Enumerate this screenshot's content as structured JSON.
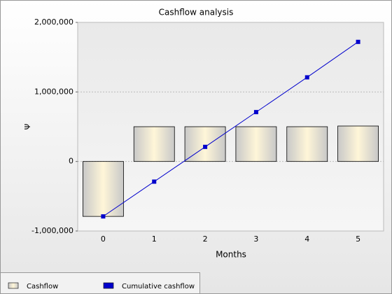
{
  "chart_data": {
    "type": "bar-line",
    "title": "Cashflow analysis",
    "y_label": "Ψ",
    "x_label": "Months",
    "categories": [
      "0",
      "1",
      "2",
      "3",
      "4",
      "5"
    ],
    "series": [
      {
        "name": "Cashflow",
        "type": "bar",
        "color": "#fff6d8",
        "values": [
          -790000,
          500000,
          500000,
          500000,
          500000,
          510000
        ]
      },
      {
        "name": "Cumulative cashflow",
        "type": "line",
        "color": "#0000cc",
        "values": [
          -790000,
          -290000,
          210000,
          710000,
          1210000,
          1720000
        ]
      }
    ],
    "ylim": [
      -1000000,
      2000000
    ],
    "yticks": [
      {
        "value": -1000000,
        "label": "-1,000,000"
      },
      0,
      {
        "value": 1000000,
        "label": "1,000,000"
      },
      {
        "value": 2000000,
        "label": "2,000,000"
      }
    ],
    "grid": true
  }
}
